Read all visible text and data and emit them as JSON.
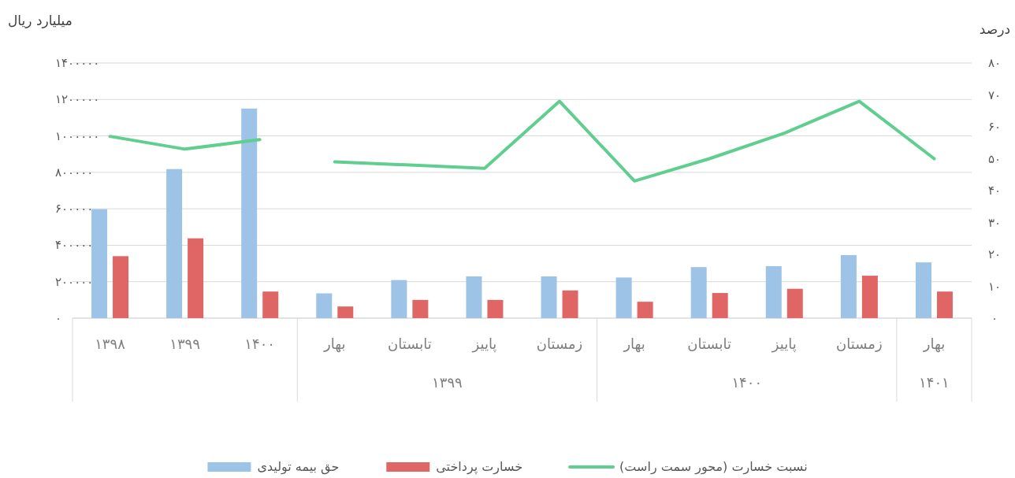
{
  "chart_data": {
    "type": "bar",
    "ylabel": "میلیارد ریال",
    "y2label": "درصد",
    "categories": [
      "۱۳۹۸",
      "۱۳۹۹",
      "۱۴۰۰",
      "بهار",
      "تابستان",
      "پاییز",
      "زمستان",
      "بهار",
      "تابستان",
      "پاییز",
      "زمستان",
      "بهار"
    ],
    "series": [
      {
        "name": "حق بیمه تولیدی",
        "color": "#9dc3e6",
        "values": [
          598000,
          818000,
          1150000,
          136000,
          209000,
          229000,
          229000,
          223000,
          280000,
          285000,
          346000,
          306000
        ]
      },
      {
        "name": "خسارت پرداختی",
        "color": "#e06666",
        "values": [
          340000,
          438000,
          146000,
          64000,
          100000,
          100000,
          152000,
          90000,
          138000,
          161000,
          233000,
          146000
        ]
      },
      {
        "name": "نسبت خسارت (محور سمت راست)",
        "type": "line",
        "axis": "y2",
        "color": "#5fce8f",
        "values": [
          57,
          53,
          56,
          null,
          null,
          null,
          null,
          null,
          null,
          null,
          null,
          null
        ]
      },
      {
        "type": "line",
        "axis": "y2",
        "color": "#5fce8f",
        "values": [
          null,
          null,
          null,
          49,
          48,
          47,
          68,
          43,
          50,
          58,
          68,
          50
        ]
      }
    ],
    "ylim": [
      0,
      1400000
    ],
    "yticks": [
      {
        "value": 0,
        "label": "۰"
      },
      {
        "value": 200000,
        "label": "۲۰۰۰۰۰"
      },
      {
        "value": 400000,
        "label": "۴۰۰۰۰۰"
      },
      {
        "value": 600000,
        "label": "۶۰۰۰۰۰"
      },
      {
        "value": 800000,
        "label": "۸۰۰۰۰۰"
      },
      {
        "value": 1000000,
        "label": "۱۰۰۰۰۰۰"
      },
      {
        "value": 1200000,
        "label": "۱۲۰۰۰۰۰"
      },
      {
        "value": 1400000,
        "label": "۱۴۰۰۰۰۰"
      }
    ],
    "y2lim": [
      0,
      80
    ],
    "y2ticks": [
      {
        "value": 0,
        "label": "۰"
      },
      {
        "value": 10,
        "label": "۱۰"
      },
      {
        "value": 20,
        "label": "۲۰"
      },
      {
        "value": 30,
        "label": "۳۰"
      },
      {
        "value": 40,
        "label": "۴۰"
      },
      {
        "value": 50,
        "label": "۵۰"
      },
      {
        "value": 60,
        "label": "۶۰"
      },
      {
        "value": 70,
        "label": "۷۰"
      },
      {
        "value": 80,
        "label": "۸۰"
      }
    ],
    "grid": "y",
    "legend": "bottom",
    "annotations": [
      "۱۳۹۹",
      "۱۴۰۰",
      "۱۴۰۱"
    ]
  }
}
